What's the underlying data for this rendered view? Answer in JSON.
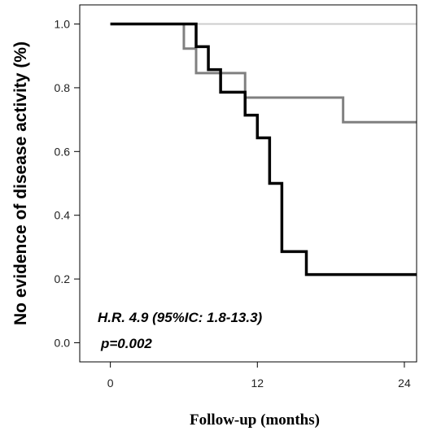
{
  "chart_data": {
    "type": "line",
    "step": true,
    "xlabel": "Follow-up  (months)",
    "ylabel": "No evidence of disease activity (%)",
    "xlim": [
      -2.5,
      25
    ],
    "ylim": [
      -0.06,
      1.06
    ],
    "x_ticks": [
      {
        "value": 0,
        "label": "0"
      },
      {
        "value": 12,
        "label": "12"
      },
      {
        "value": 24,
        "label": "24"
      }
    ],
    "y_ticks": [
      {
        "value": 0.0,
        "label": "0.0"
      },
      {
        "value": 0.2,
        "label": "0.2"
      },
      {
        "value": 0.4,
        "label": "0.4"
      },
      {
        "value": 0.6,
        "label": "0.6"
      },
      {
        "value": 0.8,
        "label": "0.8"
      },
      {
        "value": 1.0,
        "label": "1.0"
      }
    ],
    "grid": false,
    "series": [
      {
        "color": "#cccccc",
        "width": 2,
        "x": [
          0,
          25
        ],
        "y": [
          1.0,
          1.0
        ]
      },
      {
        "color": "#808080",
        "width": 3,
        "x": [
          0,
          6,
          7,
          11,
          19,
          25
        ],
        "y": [
          1.0,
          0.923,
          0.846,
          0.769,
          0.692,
          0.692
        ]
      },
      {
        "color": "#000000",
        "width": 3.5,
        "x": [
          0,
          7,
          8,
          9,
          11,
          12,
          13,
          14,
          16,
          25
        ],
        "y": [
          1.0,
          0.929,
          0.857,
          0.786,
          0.714,
          0.643,
          0.5,
          0.286,
          0.214,
          0.214
        ]
      }
    ],
    "annotations": [
      {
        "text": "H.R. 4.9 (95%IC: 1.8-13.3)"
      },
      {
        "text": "p=0.002"
      }
    ]
  }
}
